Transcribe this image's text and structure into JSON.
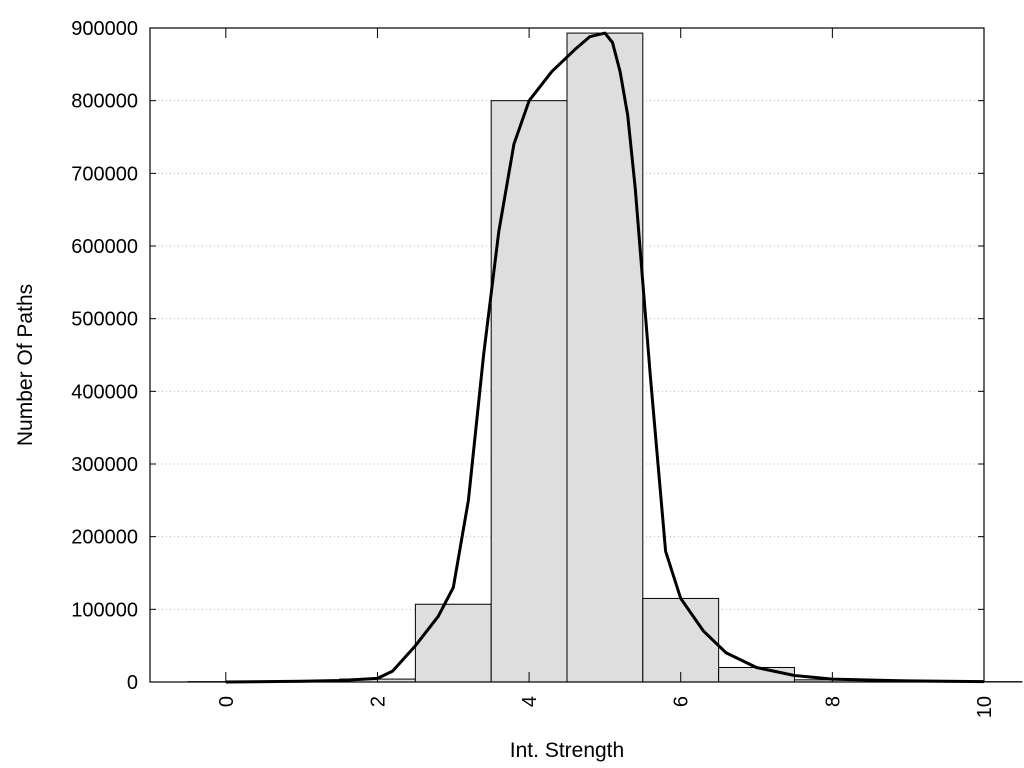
{
  "chart_data": {
    "type": "bar",
    "title": "",
    "xlabel": "Int. Strength",
    "ylabel": "Number Of Paths",
    "xlim": [
      -1,
      10
    ],
    "ylim": [
      0,
      900000
    ],
    "x_ticks": [
      0,
      2,
      4,
      6,
      8,
      10
    ],
    "y_ticks": [
      0,
      100000,
      200000,
      300000,
      400000,
      500000,
      600000,
      700000,
      800000,
      900000
    ],
    "x_tick_rotation": "vertical",
    "grid": "horizontal dotted",
    "bars": {
      "x": [
        0,
        1,
        2,
        3,
        4,
        5,
        6,
        7,
        8,
        9,
        10
      ],
      "width": 1,
      "values": [
        500,
        800,
        4000,
        107000,
        800000,
        893000,
        115000,
        20000,
        3000,
        1000,
        500
      ]
    },
    "curve": {
      "x": [
        0,
        1,
        1.5,
        2,
        2.2,
        2.5,
        2.8,
        3,
        3.2,
        3.4,
        3.6,
        3.8,
        4,
        4.3,
        4.6,
        4.8,
        5,
        5.1,
        5.2,
        5.3,
        5.4,
        5.6,
        5.8,
        6,
        6.3,
        6.6,
        7,
        7.5,
        8,
        9,
        10
      ],
      "y": [
        0,
        1000,
        2000,
        5000,
        15000,
        50000,
        90000,
        130000,
        250000,
        450000,
        620000,
        740000,
        800000,
        840000,
        870000,
        888000,
        893000,
        880000,
        840000,
        780000,
        680000,
        420000,
        180000,
        115000,
        70000,
        40000,
        20000,
        9000,
        4000,
        1500,
        500
      ]
    }
  }
}
